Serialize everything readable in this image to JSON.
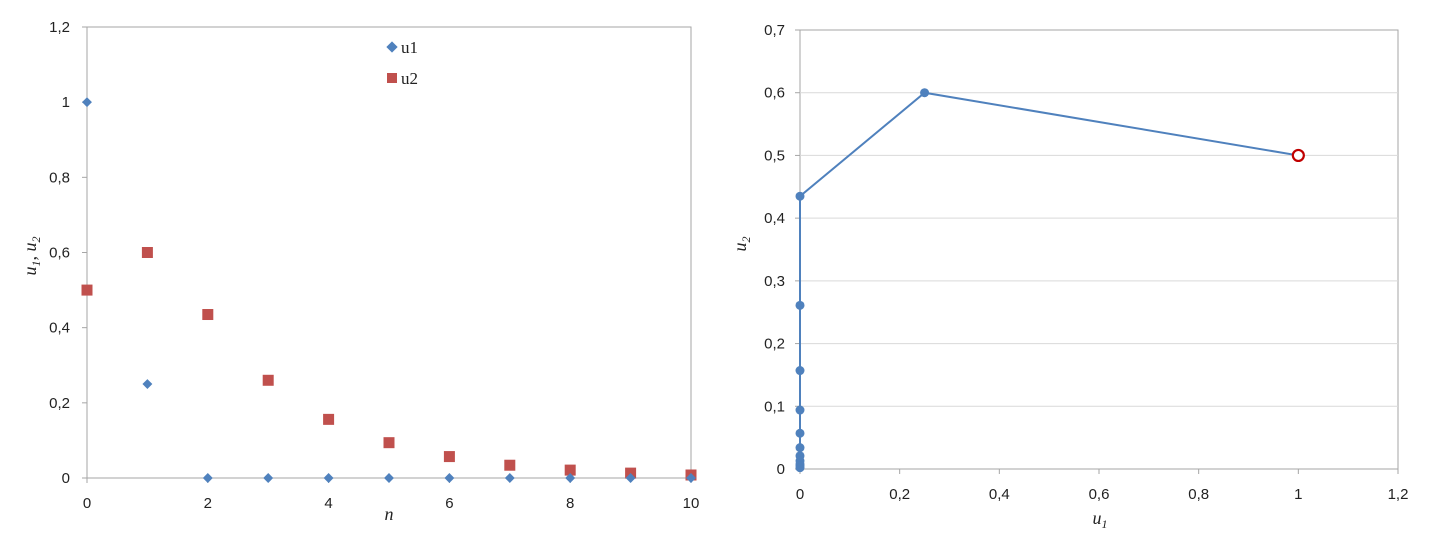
{
  "chart_data": [
    {
      "type": "scatter",
      "title": "",
      "xlabel": "n",
      "ylabel": {
        "parts": [
          "u",
          "1",
          ", u",
          "2"
        ]
      },
      "xlim": [
        0,
        10
      ],
      "ylim": [
        0,
        1.2
      ],
      "xticks": [
        "0",
        "2",
        "4",
        "6",
        "8",
        "10"
      ],
      "xtick_values": [
        0,
        2,
        4,
        6,
        8,
        10
      ],
      "yticks": [
        "0",
        "0,2",
        "0,4",
        "0,6",
        "0,8",
        "1",
        "1,2"
      ],
      "ytick_values": [
        0,
        0.2,
        0.4,
        0.6,
        0.8,
        1.0,
        1.2
      ],
      "grid": false,
      "legend": "top-center",
      "series": [
        {
          "name": "u1",
          "marker": "diamond",
          "color": "#4f81bd",
          "x": [
            0,
            1,
            2,
            3,
            4,
            5,
            6,
            7,
            8,
            9,
            10
          ],
          "y": [
            1.0,
            0.25,
            0,
            0,
            0,
            0,
            0,
            0,
            0,
            0,
            0
          ]
        },
        {
          "name": "u2",
          "marker": "square",
          "color": "#c0504d",
          "x": [
            0,
            1,
            2,
            3,
            4,
            5,
            6,
            7,
            8,
            9,
            10
          ],
          "y": [
            0.5,
            0.6,
            0.435,
            0.26,
            0.156,
            0.094,
            0.057,
            0.034,
            0.021,
            0.013,
            0.008
          ]
        }
      ]
    },
    {
      "type": "line",
      "title": "",
      "xlabel": {
        "parts": [
          "u",
          "1"
        ]
      },
      "ylabel": {
        "parts": [
          "u",
          "2"
        ]
      },
      "xlim": [
        0,
        1.2
      ],
      "ylim": [
        0,
        0.7
      ],
      "xticks": [
        "0",
        "0,2",
        "0,4",
        "0,6",
        "0,8",
        "1",
        "1,2"
      ],
      "xtick_values": [
        0,
        0.2,
        0.4,
        0.6,
        0.8,
        1.0,
        1.2
      ],
      "yticks": [
        "0",
        "0,1",
        "0,2",
        "0,3",
        "0,4",
        "0,5",
        "0,6",
        "0,7"
      ],
      "ytick_values": [
        0,
        0.1,
        0.2,
        0.3,
        0.4,
        0.5,
        0.6,
        0.7
      ],
      "grid": true,
      "series": [
        {
          "marker": "circle",
          "color": "#4f81bd",
          "x": [
            1.0,
            0.25,
            0,
            0,
            0,
            0,
            0,
            0,
            0,
            0,
            0,
            0,
            0
          ],
          "y": [
            0.5,
            0.6,
            0.435,
            0.261,
            0.157,
            0.094,
            0.057,
            0.034,
            0.021,
            0.013,
            0.008,
            0.005,
            0.002
          ]
        }
      ],
      "annotations": [
        {
          "type": "open-circle",
          "x": 1.0,
          "y": 0.5,
          "color": "#c00000"
        }
      ]
    }
  ]
}
